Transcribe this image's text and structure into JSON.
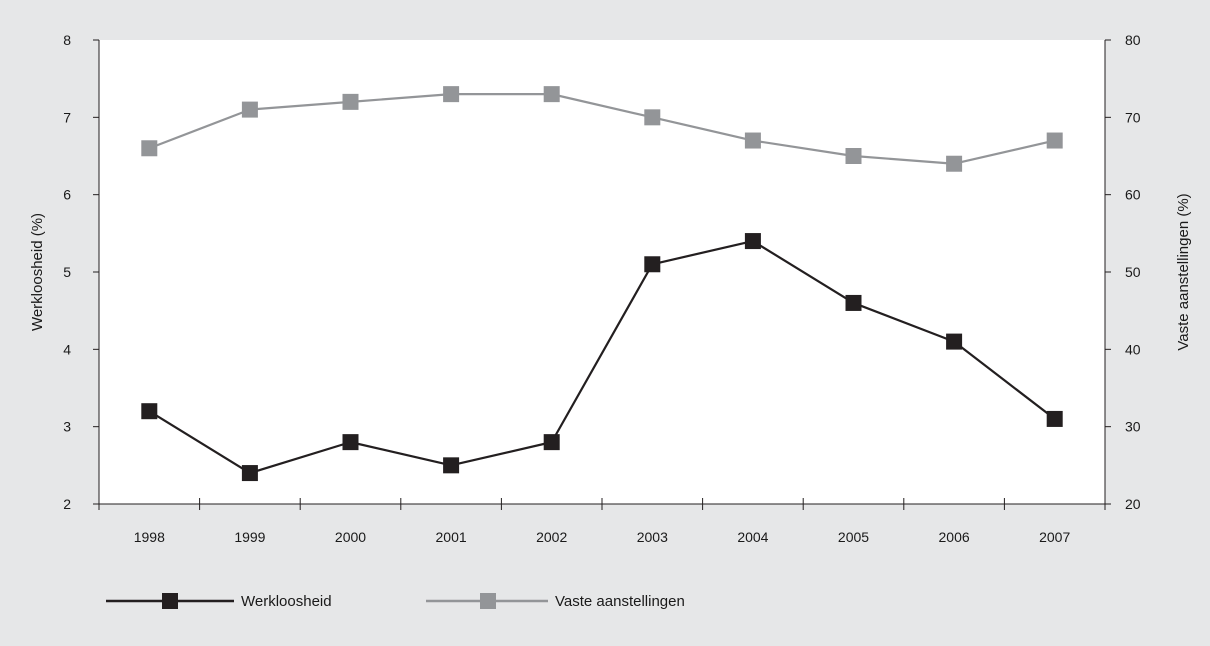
{
  "chart_data": {
    "type": "line",
    "categories": [
      "1998",
      "1999",
      "2000",
      "2001",
      "2002",
      "2003",
      "2004",
      "2005",
      "2006",
      "2007"
    ],
    "series": [
      {
        "name": "Werkloosheid",
        "axis": "left",
        "values": [
          3.2,
          2.4,
          2.8,
          2.5,
          2.8,
          5.1,
          5.4,
          4.6,
          4.1,
          3.1
        ],
        "color": "#231f20"
      },
      {
        "name": "Vaste aanstellingen",
        "axis": "right",
        "values": [
          66,
          71,
          72,
          73,
          73,
          70,
          67,
          65,
          64,
          67
        ],
        "color": "#939598"
      }
    ],
    "y_left": {
      "label": "Werkloosheid (%)",
      "lim": [
        2,
        8
      ],
      "ticks": [
        "2",
        "3",
        "4",
        "5",
        "6",
        "7",
        "8"
      ]
    },
    "y_right": {
      "label": "Vaste aanstellingen (%)",
      "lim": [
        20,
        80
      ],
      "ticks": [
        "20",
        "30",
        "40",
        "50",
        "60",
        "70",
        "80"
      ]
    },
    "xlabel": "",
    "grid": false,
    "legend_position": "bottom-left"
  },
  "colors": {
    "background": "#e6e7e8",
    "plot_background": "#ffffff",
    "axis": "#231f20"
  }
}
